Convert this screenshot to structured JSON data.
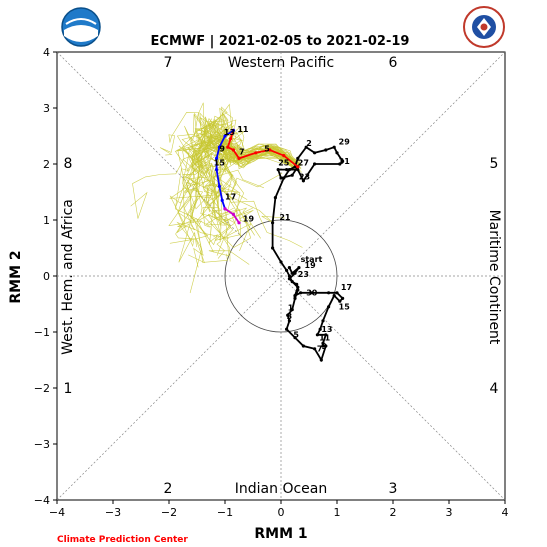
{
  "chart_data": {
    "type": "line",
    "title": "ECMWF | 2021-02-05 to 2021-02-19",
    "xlabel": "RMM 1",
    "ylabel": "RMM 2",
    "xlim": [
      -4,
      4
    ],
    "ylim": [
      -4,
      4
    ],
    "xticks": [
      "−4",
      "−3",
      "−2",
      "−1",
      "0",
      "1",
      "2",
      "3",
      "4"
    ],
    "yticks": [
      "−4",
      "−3",
      "−2",
      "−1",
      "0",
      "1",
      "2",
      "3",
      "4"
    ],
    "grid": "diagonal and axis dotted lines",
    "unit_circle_radius": 1,
    "regions": {
      "top": "Western Pacific",
      "bottom": "Indian Ocean",
      "left": "West. Hem. and Africa",
      "right": "Maritime Continent"
    },
    "phases": [
      "1",
      "2",
      "3",
      "4",
      "5",
      "6",
      "7",
      "8"
    ],
    "observed": {
      "color": "#000000",
      "labels": [
        "start",
        "19",
        "23",
        "30",
        "17",
        "15",
        "13",
        "11",
        "9",
        "7",
        "5",
        "3",
        "1",
        "29",
        "31",
        "27",
        "25",
        "23",
        "21",
        "2"
      ],
      "points": [
        [
          0.15,
          0.15
        ],
        [
          0.2,
          0.05
        ],
        [
          0.32,
          0.15
        ],
        [
          0.25,
          0.05
        ],
        [
          0.15,
          -0.05
        ],
        [
          0.3,
          -0.2
        ],
        [
          0.25,
          -0.35
        ],
        [
          0.35,
          -0.3
        ],
        [
          0.55,
          -0.3
        ],
        [
          0.85,
          -0.3
        ],
        [
          1.0,
          -0.3
        ],
        [
          1.1,
          -0.4
        ],
        [
          1.05,
          -0.45
        ],
        [
          0.95,
          -0.35
        ],
        [
          0.85,
          -0.55
        ],
        [
          0.75,
          -0.8
        ],
        [
          0.7,
          -0.95
        ],
        [
          0.65,
          -1.05
        ],
        [
          0.8,
          -1.05
        ],
        [
          0.75,
          -1.2
        ],
        [
          0.75,
          -1.25
        ],
        [
          0.8,
          -1.25
        ],
        [
          0.72,
          -1.5
        ],
        [
          0.6,
          -1.3
        ],
        [
          0.4,
          -1.25
        ],
        [
          0.25,
          -1.1
        ],
        [
          0.1,
          -0.95
        ],
        [
          0.15,
          -0.8
        ],
        [
          0.12,
          -0.7
        ],
        [
          0.2,
          -0.6
        ],
        [
          0.25,
          -0.4
        ],
        [
          0.3,
          -0.25
        ],
        [
          0.28,
          -0.15
        ],
        [
          0.2,
          -0.1
        ],
        [
          0.15,
          0.0
        ],
        [
          0.1,
          0.1
        ],
        [
          0.0,
          0.25
        ],
        [
          -0.15,
          0.5
        ],
        [
          -0.15,
          0.95
        ],
        [
          -0.1,
          1.4
        ],
        [
          0.05,
          1.75
        ],
        [
          0.15,
          1.9
        ],
        [
          0.25,
          1.95
        ],
        [
          0.3,
          2.1
        ],
        [
          0.45,
          2.3
        ],
        [
          0.6,
          2.2
        ],
        [
          0.8,
          2.25
        ],
        [
          0.95,
          2.3
        ],
        [
          1.0,
          2.2
        ],
        [
          1.1,
          2.05
        ],
        [
          1.05,
          2.0
        ],
        [
          0.6,
          2.0
        ],
        [
          0.4,
          1.7
        ],
        [
          0.3,
          1.9
        ],
        [
          0.1,
          1.9
        ],
        [
          -0.05,
          1.9
        ],
        [
          0.0,
          1.75
        ],
        [
          0.2,
          1.8
        ],
        [
          0.3,
          1.95
        ]
      ],
      "label_points": [
        [
          0.35,
          0.25,
          "start"
        ],
        [
          0.42,
          0.14,
          "19"
        ],
        [
          0.3,
          -0.02,
          "23"
        ],
        [
          0.45,
          -0.35,
          "30"
        ],
        [
          1.07,
          -0.25,
          "17"
        ],
        [
          1.03,
          -0.6,
          "15"
        ],
        [
          0.72,
          -1.0,
          "13"
        ],
        [
          0.68,
          -1.15,
          "11"
        ],
        [
          0.72,
          -1.3,
          "9"
        ],
        [
          0.64,
          -1.35,
          "7"
        ],
        [
          0.22,
          -1.1,
          "5"
        ],
        [
          0.1,
          -0.77,
          "3"
        ],
        [
          0.12,
          -0.62,
          "1"
        ],
        [
          1.03,
          2.35,
          "29"
        ],
        [
          1.03,
          2.0,
          "31"
        ],
        [
          0.3,
          1.97,
          "27"
        ],
        [
          -0.05,
          1.97,
          "25"
        ],
        [
          0.32,
          1.72,
          "23"
        ],
        [
          -0.03,
          1.0,
          "21"
        ],
        [
          0.45,
          2.32,
          "2"
        ]
      ]
    },
    "forecast_mean": {
      "labels": [
        "5",
        "7",
        "9",
        "11",
        "13",
        "15",
        "17",
        "19"
      ],
      "red_points": [
        [
          0.3,
          1.95
        ],
        [
          0.05,
          2.15
        ],
        [
          -0.2,
          2.25
        ],
        [
          -0.45,
          2.2
        ],
        [
          -0.75,
          2.1
        ],
        [
          -0.85,
          2.25
        ],
        [
          -0.95,
          2.3
        ],
        [
          -0.9,
          2.45
        ],
        [
          -0.85,
          2.6
        ]
      ],
      "blue_points": [
        [
          -0.85,
          2.6
        ],
        [
          -1.0,
          2.5
        ],
        [
          -1.1,
          2.3
        ],
        [
          -1.15,
          2.1
        ],
        [
          -1.15,
          1.9
        ],
        [
          -1.1,
          1.6
        ],
        [
          -1.05,
          1.35
        ],
        [
          -1.0,
          1.2
        ]
      ],
      "magenta_points": [
        [
          -1.0,
          1.2
        ],
        [
          -0.85,
          1.1
        ],
        [
          -0.75,
          0.95
        ]
      ],
      "label_points": [
        [
          -0.3,
          2.22,
          "5"
        ],
        [
          -0.75,
          2.17,
          "7"
        ],
        [
          -1.1,
          2.22,
          "9"
        ],
        [
          -0.78,
          2.57,
          "11"
        ],
        [
          -1.02,
          2.52,
          "13"
        ],
        [
          -1.2,
          1.97,
          "15"
        ],
        [
          -1.0,
          1.37,
          "17"
        ],
        [
          -0.68,
          0.97,
          "19"
        ]
      ]
    },
    "ensemble": {
      "color": "#c8c832",
      "member_count": 51
    }
  },
  "branding": {
    "left_logo_text": "NOAA",
    "right_logo_text": "NATIONAL WEATHER SERVICE",
    "credit": "Climate Prediction Center"
  }
}
